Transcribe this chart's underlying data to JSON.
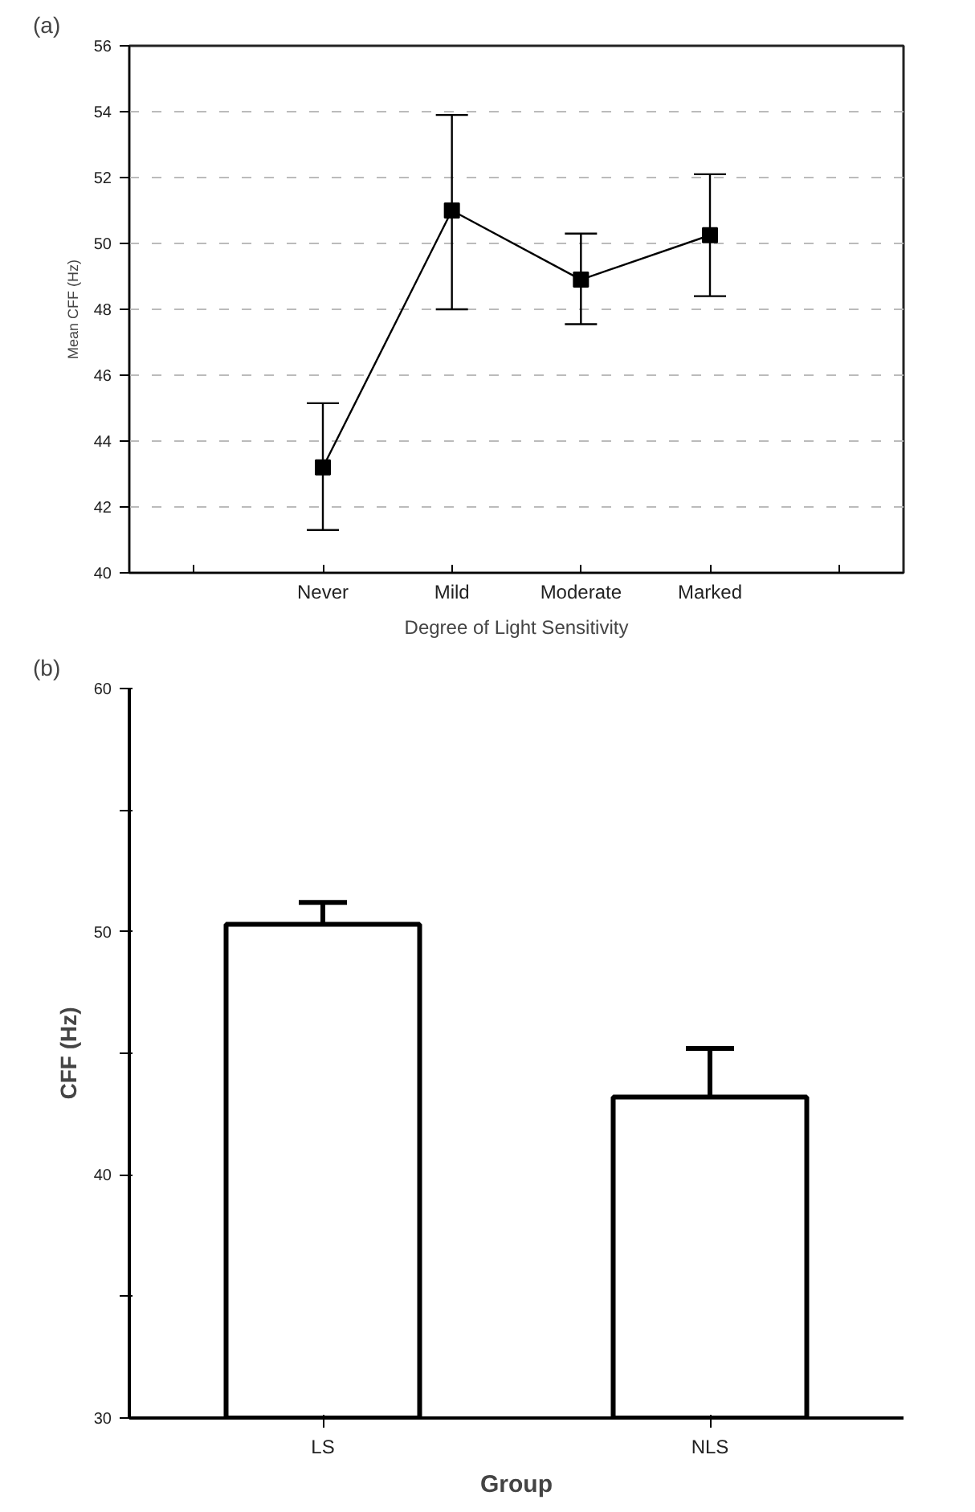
{
  "chart_data": [
    {
      "type": "line",
      "title": "(a)",
      "xlabel": "Degree of Light Sensitivity",
      "ylabel": "Mean CFF (Hz)",
      "categories": [
        null,
        "Never",
        "Mild",
        "Moderate",
        "Marked",
        null
      ],
      "values": [
        null,
        43.2,
        51.0,
        48.9,
        50.25,
        null
      ],
      "errors": [
        null,
        [
          41.3,
          45.15
        ],
        [
          48.0,
          53.9
        ],
        [
          47.55,
          50.3
        ],
        [
          48.4,
          52.1
        ],
        null
      ],
      "color": "#000000",
      "marker": "square",
      "line_style": "solid",
      "ylim": [
        40,
        56
      ],
      "yticks": [
        40,
        42,
        44,
        46,
        48,
        50,
        52,
        54,
        56
      ],
      "grid": "y"
    },
    {
      "type": "bar",
      "title": "(b)",
      "xlabel": "Group",
      "ylabel": "CFF (Hz)",
      "categories": [
        "LS",
        "NLS"
      ],
      "values": [
        50.3,
        43.2
      ],
      "errors": [
        [
          50.3,
          51.2
        ],
        [
          43.2,
          45.2
        ]
      ],
      "color": "#ffffff",
      "ylim": [
        30,
        60
      ],
      "yticks": [
        30,
        {
          "value": 35,
          "label": null
        },
        40,
        {
          "value": 45,
          "label": null
        },
        50,
        {
          "value": 55,
          "label": null
        },
        60
      ],
      "grid": false
    }
  ]
}
